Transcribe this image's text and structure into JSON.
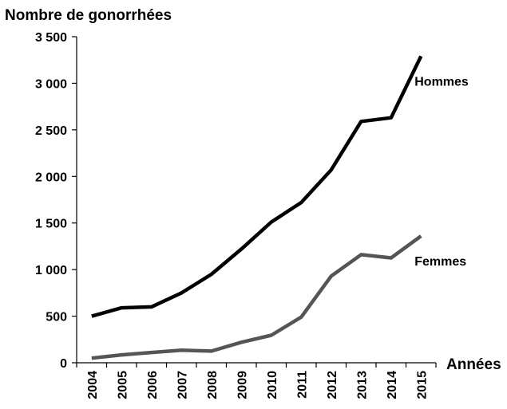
{
  "chart_data": {
    "type": "line",
    "title": "Nombre de gonorrhées",
    "xlabel": "Années",
    "ylabel": "",
    "ylim": [
      0,
      3500
    ],
    "yticks": [
      0,
      500,
      1000,
      1500,
      2000,
      2500,
      3000,
      3500
    ],
    "ytick_labels": [
      "0",
      "500",
      "1 000",
      "1 500",
      "2 000",
      "2 500",
      "3 000",
      "3 500"
    ],
    "categories": [
      "2004",
      "2005",
      "2006",
      "2007",
      "2008",
      "2009",
      "2010",
      "2011",
      "2012",
      "2013",
      "2014",
      "2015"
    ],
    "grid": false,
    "legend": "inline-right",
    "series": [
      {
        "name": "Hommes",
        "color": "#000000",
        "values": [
          500,
          590,
          600,
          750,
          950,
          1220,
          1510,
          1720,
          2070,
          2590,
          2630,
          3290
        ]
      },
      {
        "name": "Femmes",
        "color": "#555555",
        "values": [
          50,
          85,
          110,
          135,
          125,
          220,
          295,
          490,
          930,
          1160,
          1125,
          1360
        ]
      }
    ]
  }
}
